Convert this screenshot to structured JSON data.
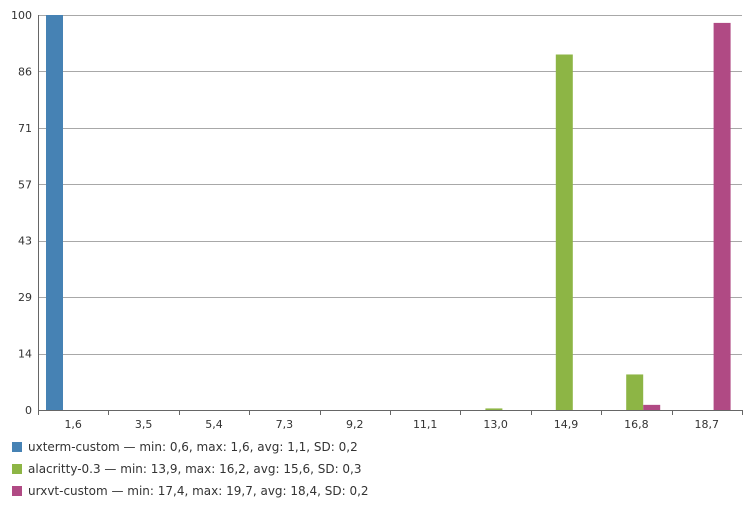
{
  "chart_data": {
    "type": "bar",
    "categories": [
      "1,6",
      "3,5",
      "5,4",
      "7,3",
      "9,2",
      "11,1",
      "13,0",
      "14,9",
      "16,8",
      "18,7"
    ],
    "y_ticks": [
      "0",
      "14",
      "29",
      "43",
      "57",
      "71",
      "86",
      "100"
    ],
    "y_tick_values": [
      0,
      14.29,
      28.57,
      42.86,
      57.14,
      71.43,
      85.71,
      100
    ],
    "ylim": [
      0,
      100
    ],
    "grid": true,
    "legend_position": "bottom-left",
    "series": [
      {
        "name": "uxterm-custom — min: 0,6, max: 1,6, avg: 1,1, SD: 0,2",
        "color": "#4682b4",
        "values": [
          100,
          0,
          0,
          0,
          0,
          0,
          0,
          0,
          0,
          0
        ]
      },
      {
        "name": "alacritty-0.3 — min: 13,9, max: 16,2, avg: 15,6, SD: 0,3",
        "color": "#8db545",
        "values": [
          0,
          0,
          0,
          0,
          0,
          0,
          0.4,
          90,
          9,
          0
        ]
      },
      {
        "name": "urxvt-custom — min: 17,4, max: 19,7, avg: 18,4, SD: 0,2",
        "color": "#b04a84",
        "values": [
          0,
          0,
          0,
          0,
          0,
          0,
          0,
          0,
          1.3,
          98
        ]
      }
    ]
  }
}
